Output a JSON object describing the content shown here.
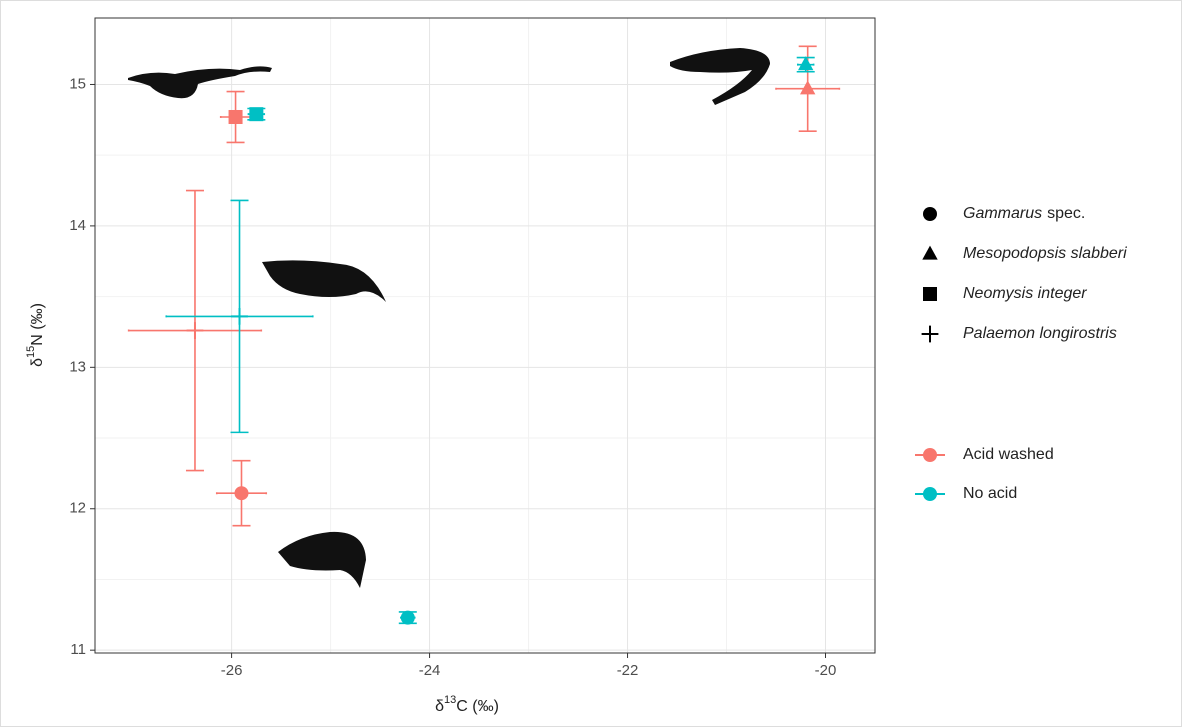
{
  "chart_data": {
    "type": "scatter",
    "x_label": {
      "prefix": "δ",
      "sup": "13",
      "suffix": "C (‰)"
    },
    "y_label": {
      "prefix": "δ",
      "sup": "15",
      "suffix": "N (‰)"
    },
    "xlim": [
      -27.38,
      -19.5
    ],
    "ylim": [
      10.98,
      15.47
    ],
    "xticks": [
      -26,
      -24,
      -22,
      -20
    ],
    "yticks": [
      11,
      12,
      13,
      14,
      15
    ],
    "grid": true,
    "treatments": [
      {
        "name": "Acid washed",
        "color": "#f8766d"
      },
      {
        "name": "No acid",
        "color": "#00bfc4"
      }
    ],
    "species": [
      {
        "genus": "Gammarus",
        "epithet": "spec.",
        "marker": "circle",
        "points": [
          {
            "x": -25.9,
            "y": 12.11,
            "xerr": 0.25,
            "yerr": 0.23
          },
          {
            "x": -24.22,
            "y": 11.23,
            "xerr": 0.07,
            "yerr": 0.04
          }
        ]
      },
      {
        "genus": "Mesopodopsis slabberi",
        "marker": "triangle",
        "points": [
          {
            "x": -20.18,
            "y": 14.97,
            "xerr": 0.32,
            "yerr": 0.3
          },
          {
            "x": -20.2,
            "y": 15.14,
            "xerr": 0.08,
            "yerr": 0.05
          }
        ]
      },
      {
        "genus": "Neomysis integer",
        "marker": "square",
        "points": [
          {
            "x": -25.96,
            "y": 14.77,
            "xerr": 0.15,
            "yerr": 0.18
          },
          {
            "x": -25.75,
            "y": 14.79,
            "xerr": 0.08,
            "yerr": 0.04
          }
        ]
      },
      {
        "genus": "Palaemon longirostris",
        "marker": "plus",
        "points": [
          {
            "x": -26.37,
            "y": 13.26,
            "xerr": 0.67,
            "yerr": 0.99
          },
          {
            "x": -25.92,
            "y": 13.36,
            "xerr": 0.74,
            "yerr": 0.82
          }
        ]
      }
    ]
  }
}
